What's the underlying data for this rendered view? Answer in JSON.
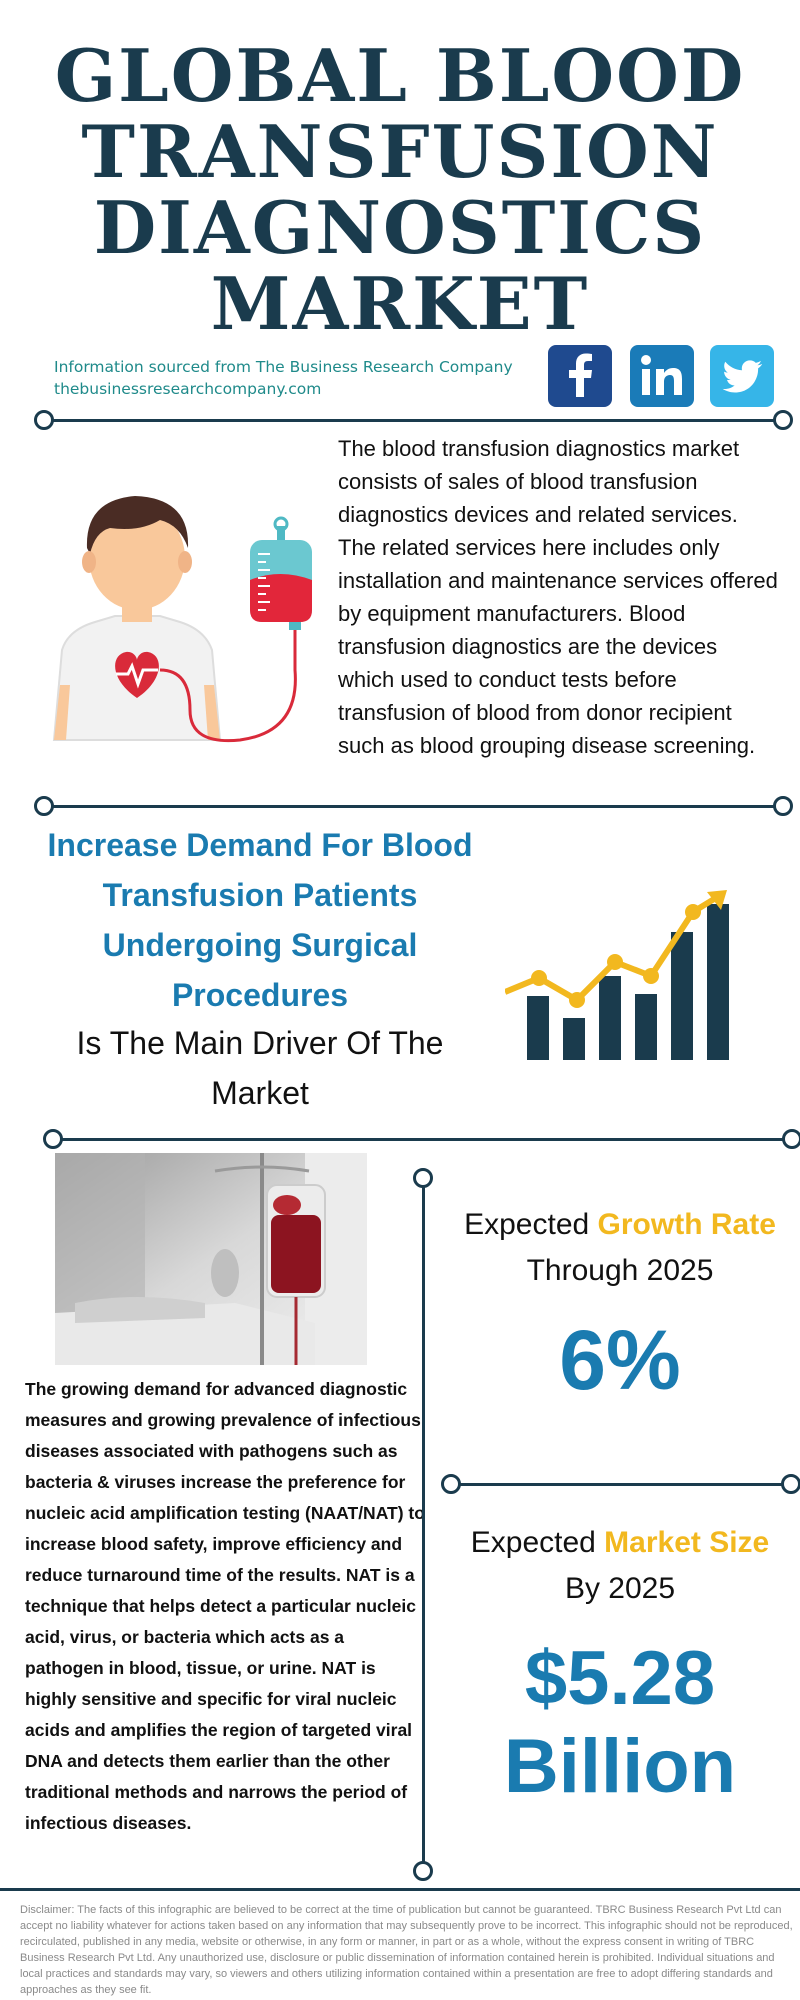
{
  "title_lines": [
    "GLOBAL BLOOD",
    "TRANSFUSION",
    "DIAGNOSTICS",
    "MARKET"
  ],
  "source": {
    "line1": "Information sourced from The Business Research Company",
    "line2": "thebusinessresearchcompany.com"
  },
  "social": [
    {
      "name": "facebook-icon",
      "color": "#1f4a8f"
    },
    {
      "name": "linkedin-icon",
      "color": "#1a7bb8"
    },
    {
      "name": "twitter-icon",
      "color": "#36b5e8"
    }
  ],
  "description": "The blood transfusion diagnostics market consists of sales of blood transfusion diagnostics devices and related services. The related services here includes only installation and maintenance services offered by equipment manufacturers. Blood transfusion diagnostics are the devices which used to conduct tests before transfusion of blood from donor recipient such as blood grouping disease screening.",
  "driver": {
    "headline": "Increase Demand For Blood Transfusion Patients Undergoing Surgical Procedures",
    "subline": "Is The Main Driver Of The Market"
  },
  "body": "The growing demand for advanced diagnostic measures and growing prevalence of infectious diseases associated with pathogens such as bacteria & viruses increase the preference for nucleic acid amplification testing (NAAT/NAT) to increase blood safety, improve efficiency and reduce turnaround time of the results. NAT is a technique that helps detect a particular nucleic acid, virus, or bacteria which acts as a pathogen in blood, tissue, or urine. NAT is highly sensitive and specific for viral nucleic acids and amplifies the region of targeted viral DNA and detects them earlier than the other traditional methods and narrows the period of infectious diseases.",
  "growth": {
    "prefix": "Expected ",
    "highlight": "Growth Rate",
    "line2": "Through 2025",
    "value": "6%"
  },
  "market_size": {
    "prefix": "Expected ",
    "highlight": "Market Size",
    "line2": "By 2025",
    "value_line1": "$5.28",
    "value_line2": "Billion"
  },
  "colors": {
    "navy": "#1a3b4d",
    "accent_blue": "#1a7bb0",
    "accent_yellow": "#f2b81f",
    "source_teal": "#1f8a8a"
  },
  "disclaimer": "Disclaimer: The facts of this infographic are believed to be correct at the time of publication but cannot be guaranteed. TBRC Business Research Pvt Ltd can accept no liability whatever for actions taken based on any information that may subsequently prove to be incorrect. This infographic should not be reproduced, recirculated, published in any media, website or otherwise, in any form or manner, in part or as a whole, without the express consent in writing of TBRC Business Research Pvt Ltd. Any unauthorized use, disclosure or public dissemination of information contained herein is prohibited. Individual situations and local practices and standards may vary, so viewers and others utilizing information contained within a presentation are free to adopt differing standards and approaches as they see fit."
}
